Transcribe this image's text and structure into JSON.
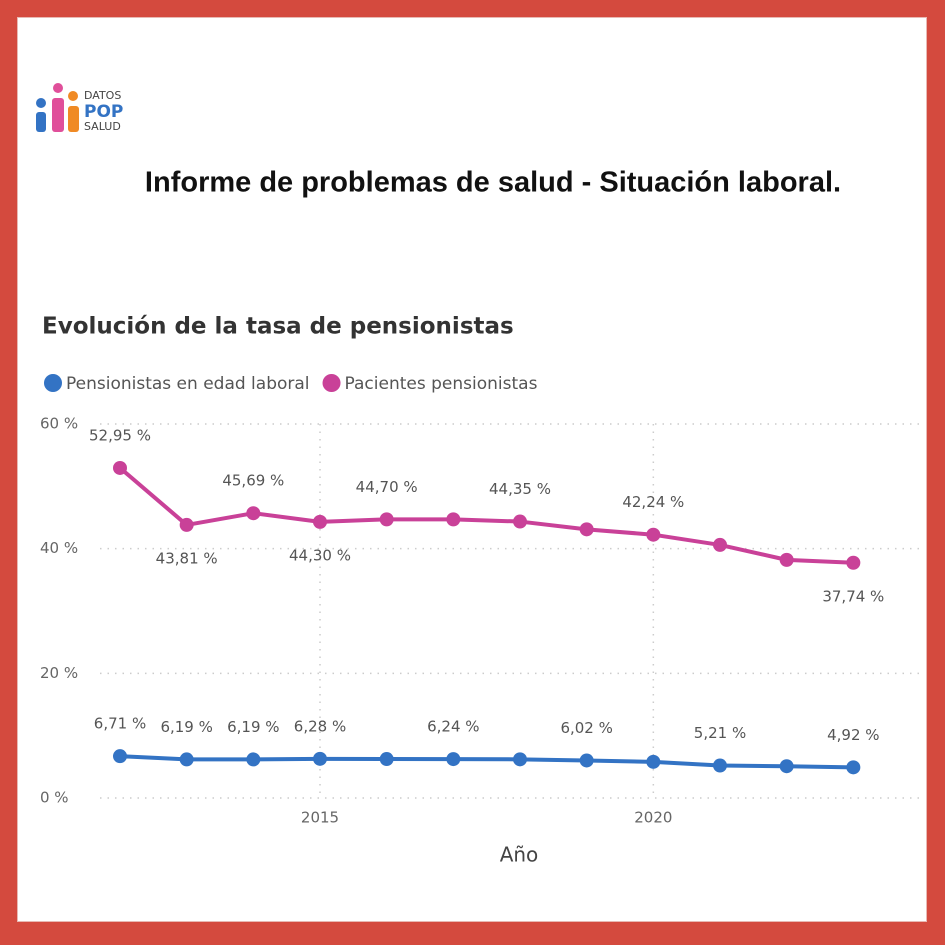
{
  "logo": {
    "line1": "DATOS",
    "line2": "POP",
    "line3": "SALUD"
  },
  "header": {
    "title": "Informe de problemas de salud - Situación laboral."
  },
  "chart_data": {
    "type": "line",
    "title": "Evolución de la tasa de pensionistas",
    "x_label": "Año",
    "x": [
      2012,
      2013,
      2014,
      2015,
      2016,
      2017,
      2018,
      2019,
      2020,
      2021,
      2022,
      2023
    ],
    "xlim": [
      2011.7,
      2024
    ],
    "xticks": [
      2015,
      2020
    ],
    "ylim": [
      0,
      60
    ],
    "yticks": [
      {
        "value": 0,
        "label": "0 %"
      },
      {
        "value": 20,
        "label": "20 %"
      },
      {
        "value": 40,
        "label": "40 %"
      },
      {
        "value": 60,
        "label": "60 %"
      }
    ],
    "grid": true,
    "series": [
      {
        "name": "Pensionistas en edad laboral",
        "color": "#3373c4",
        "values": [
          6.71,
          6.19,
          6.19,
          6.28,
          6.25,
          6.24,
          6.2,
          6.02,
          5.8,
          5.21,
          5.1,
          4.92
        ],
        "value_labels": [
          "6,71 %",
          "6,19 %",
          "6,19 %",
          "6,28 %",
          null,
          "6,24 %",
          null,
          "6,02 %",
          null,
          "5,21 %",
          null,
          "4,92 %"
        ]
      },
      {
        "name": "Pacientes pensionistas",
        "color": "#c94198",
        "values": [
          52.95,
          43.81,
          45.69,
          44.3,
          44.7,
          44.7,
          44.35,
          43.1,
          42.24,
          40.6,
          38.2,
          37.74
        ],
        "value_labels": [
          "52,95 %",
          "43,81 %",
          "45,69 %",
          "44,30 %",
          "44,70 %",
          null,
          "44,35 %",
          null,
          "42,24 %",
          null,
          null,
          "37,74 %"
        ]
      }
    ]
  }
}
